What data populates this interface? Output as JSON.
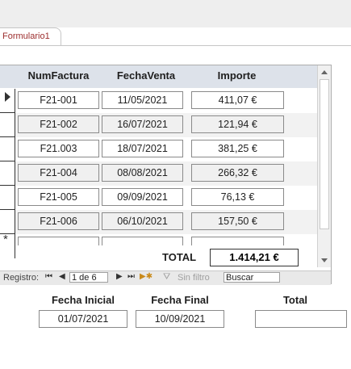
{
  "tab": {
    "label": "Formulario1"
  },
  "columns": [
    "NumFactura",
    "FechaVenta",
    "Importe"
  ],
  "rows": [
    {
      "num": "F21-001",
      "fecha": "11/05/2021",
      "importe": "411,07 €"
    },
    {
      "num": "F21-002",
      "fecha": "16/07/2021",
      "importe": "121,94 €"
    },
    {
      "num": "F21.003",
      "fecha": "18/07/2021",
      "importe": "381,25 €"
    },
    {
      "num": "F21-004",
      "fecha": "08/08/2021",
      "importe": "266,32 €"
    },
    {
      "num": "F21-005",
      "fecha": "09/09/2021",
      "importe": "76,13 €"
    },
    {
      "num": "F21-006",
      "fecha": "06/10/2021",
      "importe": "157,50 €"
    }
  ],
  "subtotal": {
    "label": "TOTAL",
    "value": "1.414,21 €"
  },
  "navigation": {
    "label": "Registro:",
    "first": "⏮",
    "prev": "◀",
    "record": "1 de 6",
    "next": "▶",
    "last": "⏭",
    "new": "▶✱",
    "filter_icon": "⛛",
    "filter": "Sin filtro",
    "search": "Buscar"
  },
  "filters": {
    "fecha_inicial": {
      "label": "Fecha Inicial",
      "value": "01/07/2021"
    },
    "fecha_final": {
      "label": "Fecha Final",
      "value": "10/09/2021"
    },
    "total": {
      "label": "Total",
      "value": ""
    }
  },
  "colors": {
    "tab_text": "#9c2d2d",
    "header_bg": "#dde2ea"
  }
}
